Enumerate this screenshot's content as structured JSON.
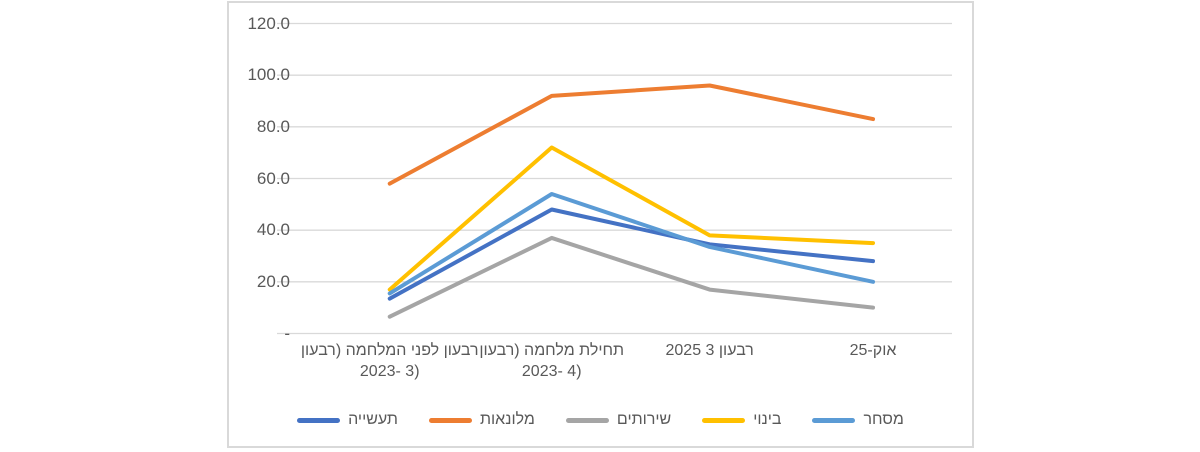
{
  "colors": {
    "chart_border": "#D9D9D9",
    "gridline": "#D9D9D9",
    "axis_text": "#595959"
  },
  "chart_data": {
    "type": "line",
    "title": "",
    "xlabel": "",
    "ylabel": "",
    "ylim": [
      0,
      120
    ],
    "ytick_step": 20,
    "ytick_labels": [
      "-",
      "20.0",
      "40.0",
      "60.0",
      "80.0",
      "100.0",
      "120.0"
    ],
    "grid": true,
    "legend_position": "bottom",
    "categories": [
      "רבעון לפני המלחמה (רבעון 3 -2023)",
      "תחילת מלחמה (רבעון 4 -2023)",
      "רבעון 3 2025",
      "אוק-25"
    ],
    "categories_lines": [
      [
        "רבעון לפני המלחמה (רבעון",
        "3 -2023)"
      ],
      [
        "תחילת מלחמה (רבעון",
        "4 -2023)"
      ],
      [
        "רבעון 3 2025"
      ],
      [
        "אוק-25"
      ]
    ],
    "series": [
      {
        "id": "industry",
        "name": "תעשייה",
        "color": "#4472C4",
        "values": [
          13.5,
          48,
          34.5,
          28
        ]
      },
      {
        "id": "hotels",
        "name": "מלונאות",
        "color": "#ED7D31",
        "values": [
          58,
          92,
          96,
          83
        ]
      },
      {
        "id": "services",
        "name": "שירותים",
        "color": "#A5A5A5",
        "values": [
          6.5,
          37,
          17,
          10
        ]
      },
      {
        "id": "construction",
        "name": "בינוי",
        "color": "#FFC000",
        "values": [
          17,
          72,
          38,
          35
        ]
      },
      {
        "id": "commerce",
        "name": "מסחר",
        "color": "#5B9BD5",
        "values": [
          15.5,
          54,
          33.5,
          20
        ]
      }
    ]
  }
}
